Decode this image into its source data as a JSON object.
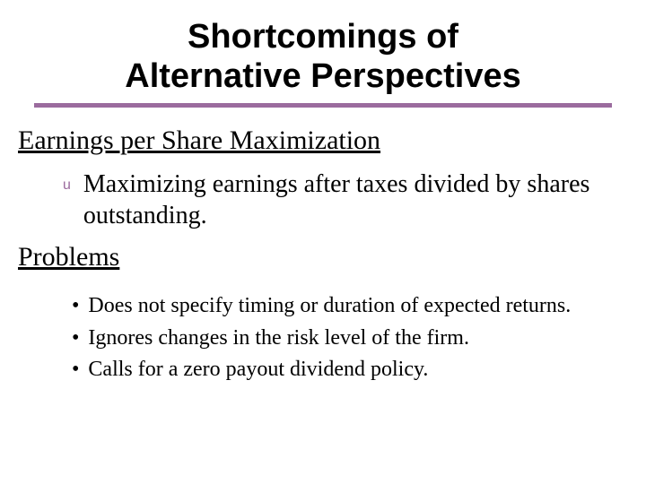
{
  "title_line1": "Shortcomings of",
  "title_line2": "Alternative Perspectives",
  "accent_color": "#9b6b9e",
  "section1": {
    "heading": "Earnings per Share Maximization",
    "bullet_marker": "u",
    "bullet_text": "Maximizing earnings after taxes divided by shares outstanding."
  },
  "section2": {
    "heading": "Problems",
    "items": [
      "Does not specify timing or duration of expected returns.",
      "Ignores changes in the risk level of the firm.",
      "Calls for a zero payout dividend policy."
    ]
  }
}
